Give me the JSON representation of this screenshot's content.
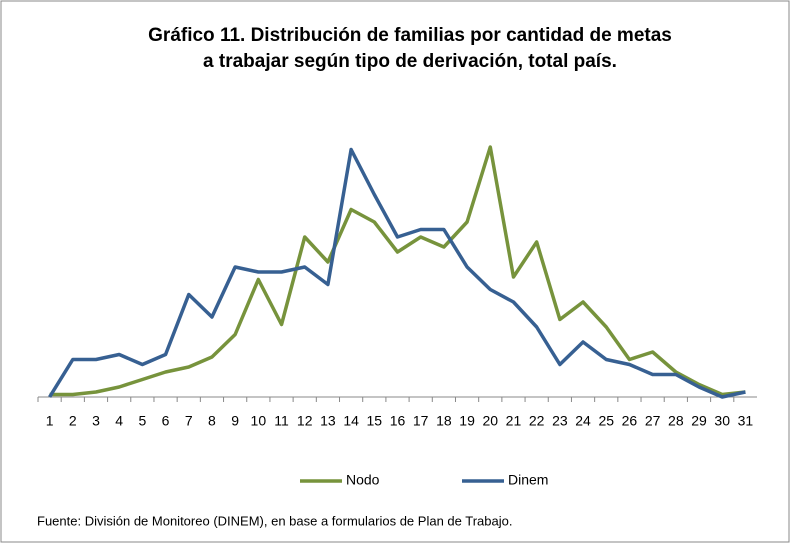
{
  "chart_data": {
    "type": "line",
    "title": "Gráfico 11. Distribución de familias por cantidad de metas",
    "subtitle": "a trabajar según tipo de derivación, total país.",
    "categories": [
      "1",
      "2",
      "3",
      "4",
      "5",
      "6",
      "7",
      "8",
      "9",
      "10",
      "11",
      "12",
      "13",
      "14",
      "15",
      "16",
      "17",
      "18",
      "19",
      "20",
      "21",
      "22",
      "23",
      "24",
      "25",
      "26",
      "27",
      "28",
      "29",
      "30",
      "31"
    ],
    "series": [
      {
        "name": "Nodo",
        "color": "#77933c",
        "values": [
          1,
          1,
          2,
          4,
          7,
          10,
          12,
          16,
          25,
          47,
          29,
          64,
          54,
          75,
          70,
          58,
          64,
          60,
          70,
          100,
          48,
          62,
          31,
          38,
          28,
          15,
          18,
          10,
          5,
          1,
          2
        ]
      },
      {
        "name": "Dinem",
        "color": "#376092",
        "values": [
          0,
          15,
          15,
          17,
          13,
          17,
          41,
          32,
          52,
          50,
          50,
          52,
          45,
          99,
          81,
          64,
          67,
          67,
          52,
          43,
          38,
          28,
          13,
          22,
          15,
          13,
          9,
          9,
          4,
          0,
          2
        ]
      }
    ],
    "ylim": [
      0,
      100
    ],
    "legend": "bottom",
    "source": "Fuente: División de Monitoreo (DINEM), en base a formularios  de Plan de Trabajo."
  }
}
